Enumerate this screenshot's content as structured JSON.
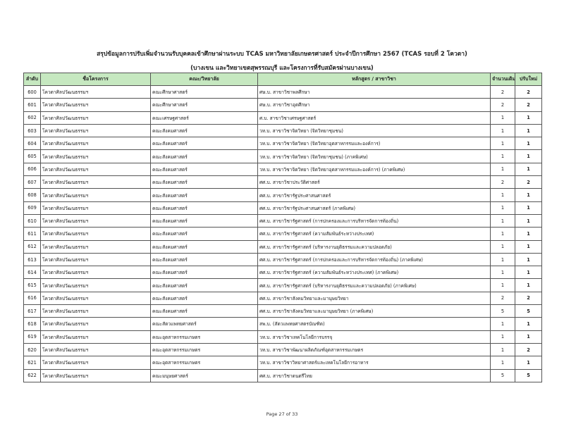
{
  "title": "สรุปข้อมูลการปรับเพิ่มจำนวนรับบุคคลเข้าศึกษาผ่านระบบ TCAS มหาวิทยาลัยเกษตรศาสตร์ ประจำปีการศึกษา 2567 (TCAS รอบที่ 2 โควตา)",
  "subtitle": "(บางเขน และวิทยาเขตสุพรรณบุรี และโครงการที่รับสมัครผ่านบางเขน)",
  "header_color": "#c6e8c0",
  "columns": [
    "ลำดับ",
    "ชื่อโครงการ",
    "คณะ/วิทยาลัย",
    "หลักสูตร / สาขาวิชา",
    "จำนวนเดิม",
    "ปรับใหม่"
  ],
  "rows": [
    [
      "600",
      "โควตาศิลปวัฒนธรรมฯ",
      "คณะศึกษาศาสตร์",
      "ศษ.บ. สาขาวิชาพลศึกษา",
      "2",
      "2"
    ],
    [
      "601",
      "โควตาศิลปวัฒนธรรมฯ",
      "คณะศึกษาศาสตร์",
      "ศษ.บ. สาขาวิชาอุตศึกษา",
      "2",
      "2"
    ],
    [
      "602",
      "โควตาศิลปวัฒนธรรมฯ",
      "คณะเศรษฐศาสตร์",
      "ศ.บ. สาขาวิชาเศรษฐศาสตร์",
      "1",
      "1"
    ],
    [
      "603",
      "โควตาศิลปวัฒนธรรมฯ",
      "คณะสังคมศาสตร์",
      "วท.บ. สาขาวิชาจิตวิทยา (จิตวิทยาชุมชน)",
      "1",
      "1"
    ],
    [
      "604",
      "โควตาศิลปวัฒนธรรมฯ",
      "คณะสังคมศาสตร์",
      "วท.บ. สาขาวิชาจิตวิทยา (จิตวิทยาอุตสาหกรรมและองค์การ)",
      "1",
      "1"
    ],
    [
      "605",
      "โควตาศิลปวัฒนธรรมฯ",
      "คณะสังคมศาสตร์",
      "วท.บ. สาขาวิชาจิตวิทยา (จิตวิทยาชุมชน) (ภาคพิเศษ)",
      "1",
      "1"
    ],
    [
      "606",
      "โควตาศิลปวัฒนธรรมฯ",
      "คณะสังคมศาสตร์",
      "วท.บ. สาขาวิชาจิตวิทยา (จิตวิทยาอุตสาหกรรมและองค์การ) (ภาคพิเศษ)",
      "1",
      "1"
    ],
    [
      "607",
      "โควตาศิลปวัฒนธรรมฯ",
      "คณะสังคมศาสตร์",
      "ศศ.บ. สาขาวิชาประวัติศาสตร์",
      "2",
      "2"
    ],
    [
      "608",
      "โควตาศิลปวัฒนธรรมฯ",
      "คณะสังคมศาสตร์",
      "ศศ.บ. สาขาวิชารัฐประศาสนศาสตร์",
      "1",
      "1"
    ],
    [
      "609",
      "โควตาศิลปวัฒนธรรมฯ",
      "คณะสังคมศาสตร์",
      "ศศ.บ. สาขาวิชารัฐประศาสนศาสตร์ (ภาคพิเศษ)",
      "1",
      "1"
    ],
    [
      "610",
      "โควตาศิลปวัฒนธรรมฯ",
      "คณะสังคมศาสตร์",
      "ศศ.บ. สาขาวิชารัฐศาสตร์ (การปกครองและการบริหารจัดการท้องถิ่น)",
      "1",
      "1"
    ],
    [
      "611",
      "โควตาศิลปวัฒนธรรมฯ",
      "คณะสังคมศาสตร์",
      "ศศ.บ. สาขาวิชารัฐศาสตร์ (ความสัมพันธ์ระหว่างประเทศ)",
      "1",
      "1"
    ],
    [
      "612",
      "โควตาศิลปวัฒนธรรมฯ",
      "คณะสังคมศาสตร์",
      "ศศ.บ. สาขาวิชารัฐศาสตร์ (บริหารงานยุติธรรมและความปลอดภัย)",
      "1",
      "1"
    ],
    [
      "613",
      "โควตาศิลปวัฒนธรรมฯ",
      "คณะสังคมศาสตร์",
      "ศศ.บ. สาขาวิชารัฐศาสตร์ (การปกครองและการบริหารจัดการท้องถิ่น) (ภาคพิเศษ)",
      "1",
      "1"
    ],
    [
      "614",
      "โควตาศิลปวัฒนธรรมฯ",
      "คณะสังคมศาสตร์",
      "ศศ.บ. สาขาวิชารัฐศาสตร์ (ความสัมพันธ์ระหว่างประเทศ) (ภาคพิเศษ)",
      "1",
      "1"
    ],
    [
      "615",
      "โควตาศิลปวัฒนธรรมฯ",
      "คณะสังคมศาสตร์",
      "ศศ.บ. สาขาวิชารัฐศาสตร์ (บริหารงานยุติธรรมและความปลอดภัย) (ภาคพิเศษ)",
      "1",
      "1"
    ],
    [
      "616",
      "โควตาศิลปวัฒนธรรมฯ",
      "คณะสังคมศาสตร์",
      "ศศ.บ. สาขาวิชาสังคมวิทยาและมานุษยวิทยา",
      "2",
      "2"
    ],
    [
      "617",
      "โควตาศิลปวัฒนธรรมฯ",
      "คณะสังคมศาสตร์",
      "ศศ.บ. สาขาวิชาสังคมวิทยาและมานุษยวิทยา (ภาคพิเศษ)",
      "5",
      "5"
    ],
    [
      "618",
      "โควตาศิลปวัฒนธรรมฯ",
      "คณะสัตวแพทยศาสตร์",
      "สพ.บ. (สัตวแพทยศาสตรบัณฑิต)",
      "1",
      "1"
    ],
    [
      "619",
      "โควตาศิลปวัฒนธรรมฯ",
      "คณะอุตสาหกรรมเกษตร",
      "วท.บ. สาขาวิชาเทคโนโลยีการบรรจุ",
      "1",
      "1"
    ],
    [
      "620",
      "โควตาศิลปวัฒนธรรมฯ",
      "คณะอุตสาหกรรมเกษตร",
      "วท.บ. สาขาวิชาพัฒนาผลิตภัณฑ์อุตสาหกรรมเกษตร",
      "1",
      "2"
    ],
    [
      "621",
      "โควตาศิลปวัฒนธรรมฯ",
      "คณะอุตสาหกรรมเกษตร",
      "วท.บ. สาขาวิชาวิทยาศาสตร์และเทคโนโลยีการอาหาร",
      "1",
      "1"
    ],
    [
      "622",
      "โควตาศิลปวัฒนธรรมฯ",
      "คณะมนุษยศาสตร์",
      "ศศ.บ. สาขาวิชาดนตรีไทย",
      "5",
      "5"
    ]
  ],
  "footer": "Page 27 of 33"
}
